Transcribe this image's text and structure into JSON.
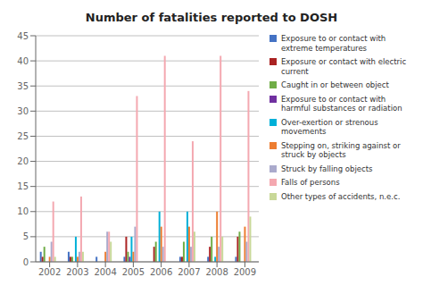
{
  "chart_data": {
    "type": "bar",
    "title": "Number of fatalities reported to DOSH",
    "categories": [
      "2002",
      "2003",
      "2004",
      "2005",
      "2006",
      "2007",
      "2008",
      "2009"
    ],
    "series": [
      {
        "name": "Exposure to or contact with\nextreme temperatures",
        "color": "#4472C4",
        "values": [
          2,
          2,
          1,
          1,
          0,
          1,
          1,
          1
        ]
      },
      {
        "name": "Exposure or contact with electric\ncurrent",
        "color": "#AA2222",
        "values": [
          1,
          1,
          0,
          5,
          3,
          1,
          3,
          5
        ]
      },
      {
        "name": "Caught in or between object",
        "color": "#70AD47",
        "values": [
          3,
          1,
          0,
          2,
          4,
          4,
          5,
          6
        ]
      },
      {
        "name": "Exposure to or contact with\nharmful substances or radiation",
        "color": "#7030A0",
        "values": [
          0,
          0,
          0,
          1,
          0,
          0,
          0,
          0
        ]
      },
      {
        "name": "Over-exertion or strenous\nmovements",
        "color": "#00B0D8",
        "values": [
          0,
          5,
          0,
          5,
          10,
          10,
          1,
          0
        ]
      },
      {
        "name": "Stepping on, striking against or\nstruck by objects",
        "color": "#ED7D31",
        "values": [
          1,
          1,
          2,
          2,
          7,
          7,
          10,
          7
        ]
      },
      {
        "name": "Struck by falling objects",
        "color": "#AAAACC",
        "values": [
          4,
          2,
          6,
          7,
          3,
          3,
          3,
          4
        ]
      },
      {
        "name": "Falls of persons",
        "color": "#F4A8B0",
        "values": [
          12,
          13,
          6,
          33,
          41,
          24,
          41,
          34
        ]
      },
      {
        "name": "Other types of accidents, n.e.c.",
        "color": "#C8D898",
        "values": [
          1,
          2,
          4,
          0,
          0,
          6,
          5,
          9
        ]
      }
    ],
    "ylim": [
      0,
      45
    ],
    "yticks": [
      0,
      5,
      10,
      15,
      20,
      25,
      30,
      35,
      40,
      45
    ],
    "grid": true,
    "legend": "right"
  }
}
